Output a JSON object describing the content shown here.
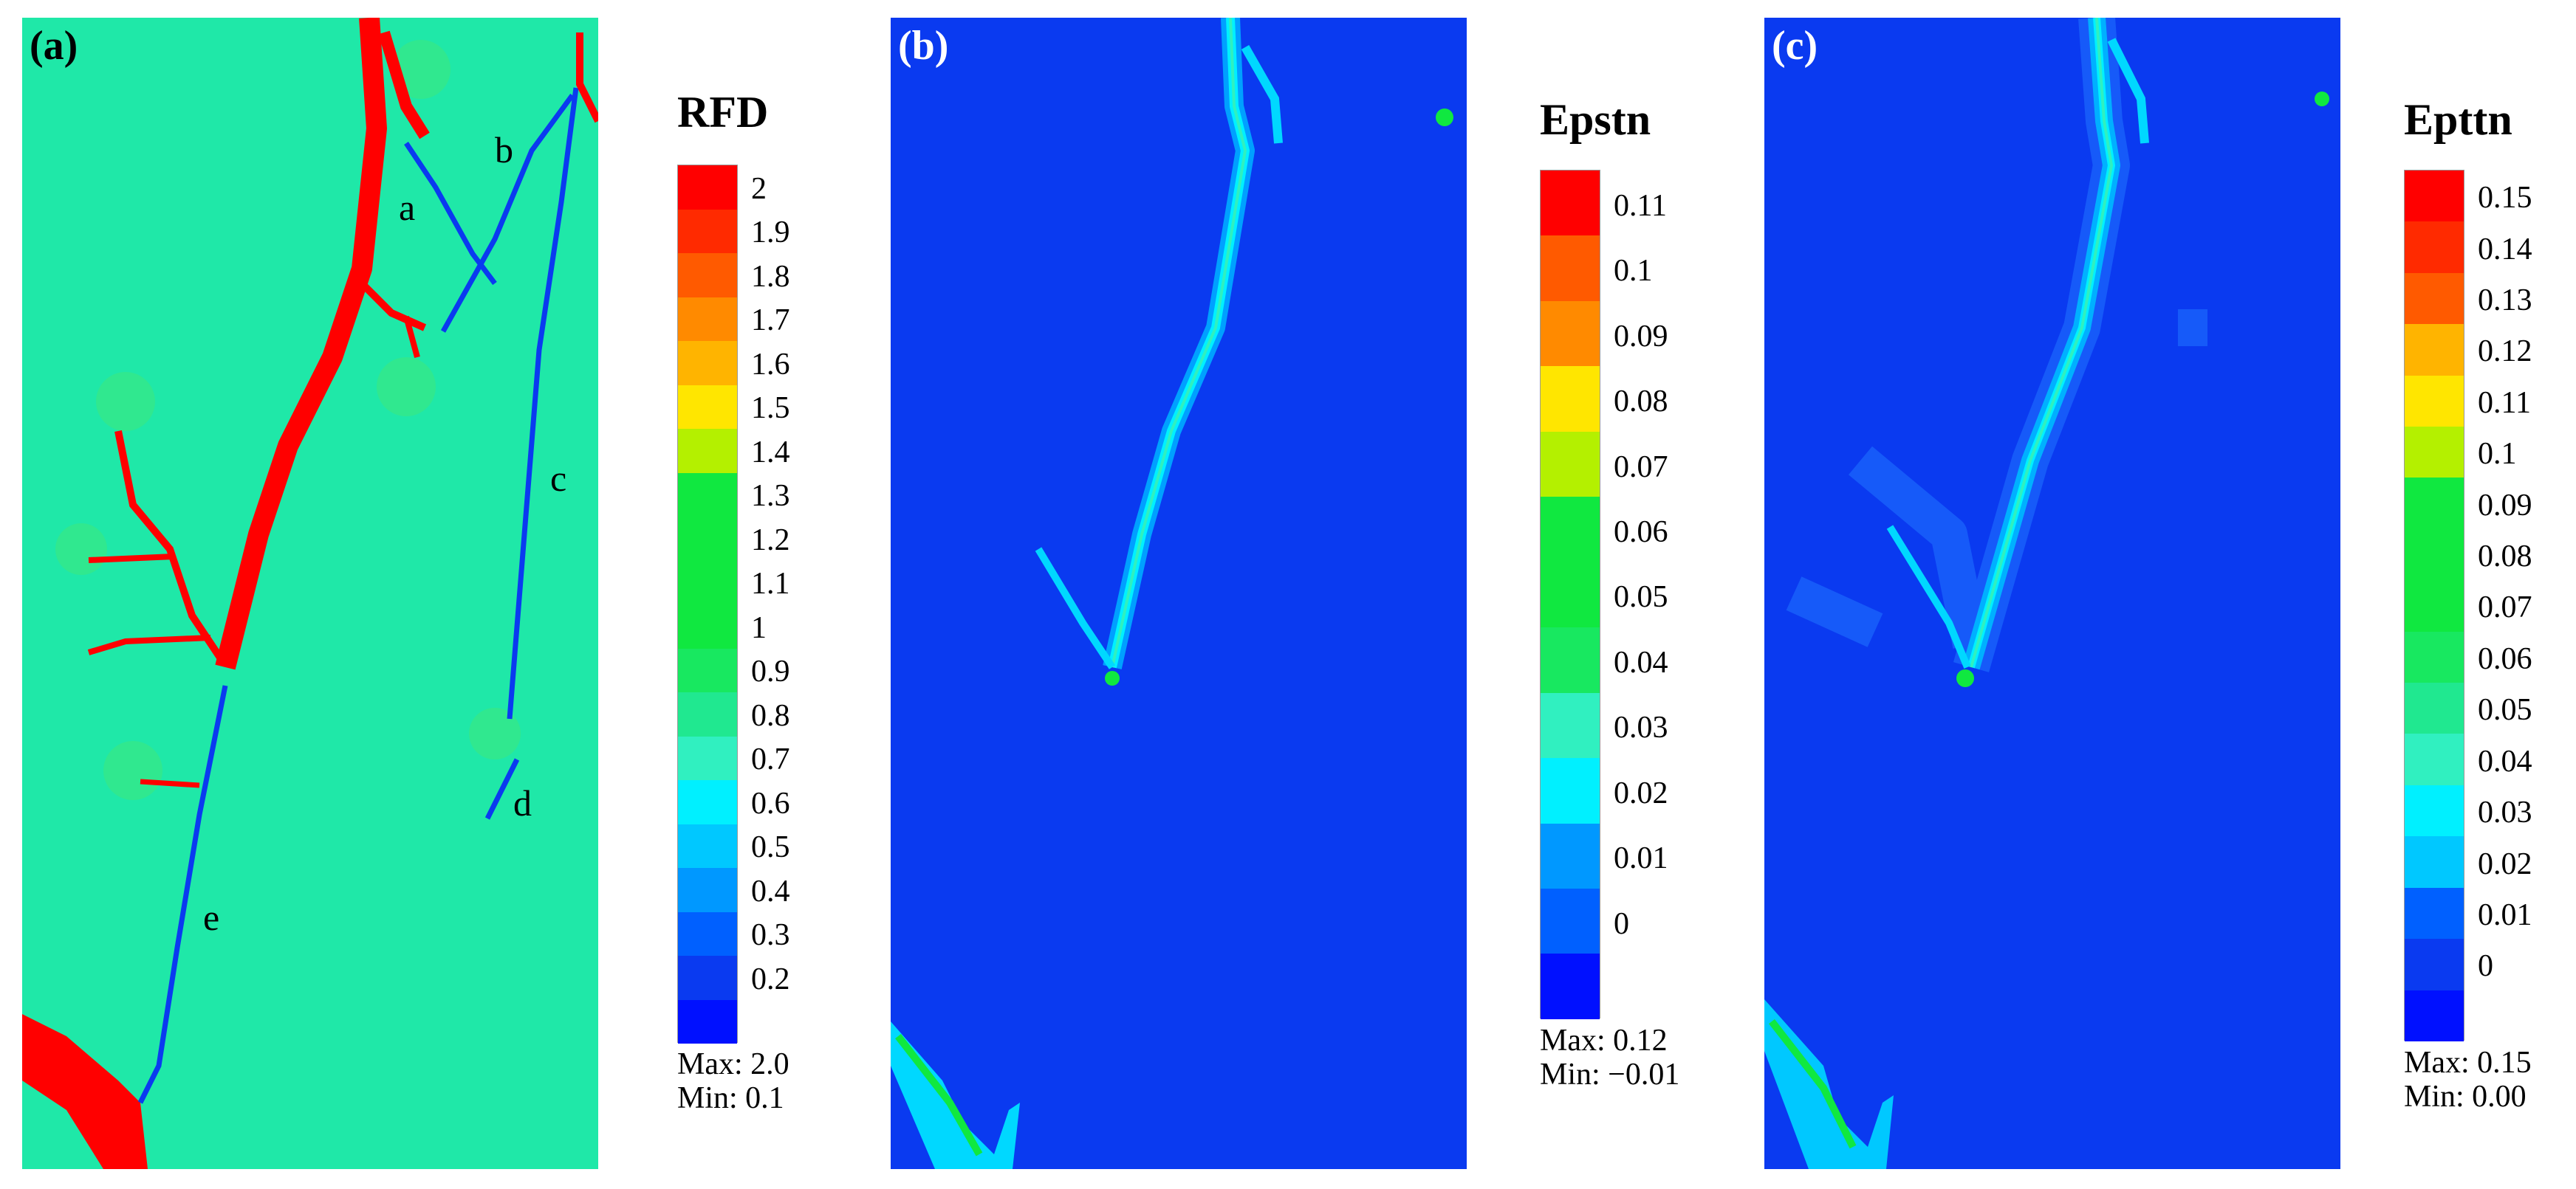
{
  "panels": [
    {
      "label": "(a)",
      "bg": "#1fe8a8"
    },
    {
      "label": "(b)",
      "bg": "#0a3af0"
    },
    {
      "label": "(c)",
      "bg": "#0a3af0"
    }
  ],
  "crack_labels": [
    "a",
    "b",
    "c",
    "d",
    "e"
  ],
  "legends": [
    {
      "title": "RFD",
      "ticks": [
        "2",
        "1.9",
        "1.8",
        "1.7",
        "1.6",
        "1.5",
        "1.4",
        "1.3",
        "1.2",
        "1.1",
        "1",
        "0.9",
        "0.8",
        "0.7",
        "0.6",
        "0.5",
        "0.4",
        "0.3",
        "0.2"
      ],
      "max": "Max:  2.0",
      "min": "Min:  0.1"
    },
    {
      "title": "Epstn",
      "ticks": [
        "0.11",
        "0.1",
        "0.09",
        "0.08",
        "0.07",
        "0.06",
        "0.05",
        "0.04",
        "0.03",
        "0.02",
        "0.01",
        "0"
      ],
      "max": "Max:  0.12",
      "min": "Min:  −0.01"
    },
    {
      "title": "Epttn",
      "ticks": [
        "0.15",
        "0.14",
        "0.13",
        "0.12",
        "0.11",
        "0.1",
        "0.09",
        "0.08",
        "0.07",
        "0.06",
        "0.05",
        "0.04",
        "0.03",
        "0.02",
        "0.01",
        "0"
      ],
      "max": "Max:  0.15",
      "min": "Min:  0.00"
    }
  ],
  "colors": {
    "red": "#ff0000",
    "blue": "#0a3af0",
    "cyan": "#00f0ff",
    "green": "#10e840",
    "mint": "#1fe8a8",
    "scale": [
      "#ff0000",
      "#ff2a00",
      "#ff5a00",
      "#ff8a00",
      "#ffb400",
      "#ffe600",
      "#b4f000",
      "#10e840",
      "#10e840",
      "#10e840",
      "#10e840",
      "#18e860",
      "#20e890",
      "#30f0c0",
      "#00f0ff",
      "#00c8ff",
      "#0098ff",
      "#0060ff",
      "#0a3af0",
      "#0010ff"
    ]
  }
}
